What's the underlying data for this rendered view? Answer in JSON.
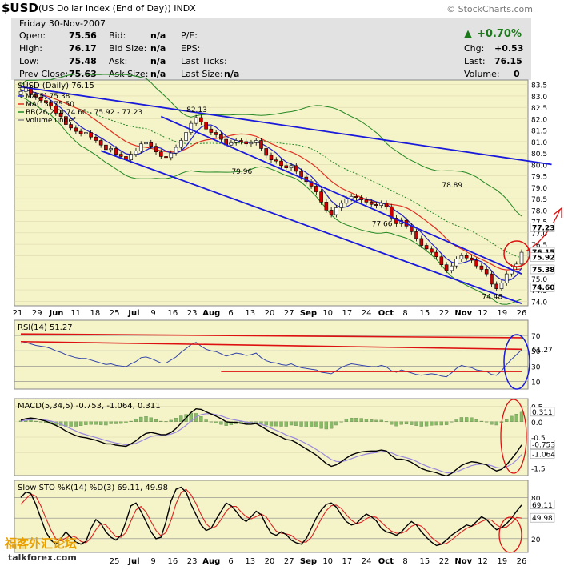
{
  "header": {
    "ticker": "$USD",
    "name": "(US Dollar Index (End of Day))",
    "exchange": "INDX",
    "brand": "© StockCharts.com"
  },
  "info": {
    "date": "Friday  30-Nov-2007",
    "open_label": "Open:",
    "open": "75.56",
    "high_label": "High:",
    "high": "76.17",
    "low_label": "Low:",
    "low": "75.48",
    "prev_label": "Prev Close:",
    "prev": "75.63",
    "bid_label": "Bid:",
    "bid": "n/a",
    "bidsize_label": "Bid Size:",
    "bidsize": "n/a",
    "ask_label": "Ask:",
    "ask": "n/a",
    "asksize_label": "Ask Size:",
    "asksize": "n/a",
    "pe_label": "P/E:",
    "eps_label": "EPS:",
    "lastticks_label": "Last Ticks:",
    "lastsize_label": "Last Size:",
    "lastsize": "n/a",
    "pct": "+0.70%",
    "chg_label": "Chg:",
    "chg": "+0.53",
    "last_label": "Last:",
    "last": "76.15",
    "vol_label": "Volume:",
    "vol": "0"
  },
  "colors": {
    "panel_bg": "#f5f3c8",
    "up": "#ffffff",
    "down": "#d00000",
    "trend": "#1a1adb",
    "ma5": "#2222cc",
    "ma13": "#e03020",
    "bb": "#228822",
    "annot": "#dd1111"
  },
  "chart_data": [
    {
      "type": "line",
      "title": "$USD (Daily) 76.15",
      "legend": [
        "MA(5) 75.38",
        "MA(13) 75.50",
        "BB(26,2.0) 74.60 - 75.92 - 77.23",
        "Volume undef"
      ],
      "y_ticks": [
        "83.5",
        "83.0",
        "82.5",
        "82.0",
        "81.5",
        "81.0",
        "80.5",
        "80.0",
        "79.5",
        "79.0",
        "78.5",
        "78.0",
        "77.5",
        "77.0",
        "76.5",
        "76.0",
        "75.5",
        "75.0",
        "74.5",
        "74.0"
      ],
      "ylim": [
        73.8,
        83.7
      ],
      "x_ticks": [
        "21",
        "29",
        "Jun",
        "11",
        "18",
        "25",
        "Jul",
        "9",
        "16",
        "23",
        "Aug",
        "6",
        "13",
        "20",
        "27",
        "Sep",
        "10",
        "17",
        "24",
        "Oct",
        "8",
        "15",
        "22",
        "Nov",
        "12",
        "19",
        "26"
      ],
      "annotations": [
        "82.13",
        "79.96",
        "78.89",
        "77.66",
        "74.48"
      ],
      "price_labels": [
        "77.23",
        "76.15",
        "75.92",
        "75.38",
        "75.50",
        "74.60"
      ],
      "close": [
        83.2,
        83.35,
        83.05,
        82.95,
        82.8,
        82.7,
        82.55,
        82.25,
        82.1,
        81.75,
        81.6,
        81.45,
        81.35,
        81.4,
        81.2,
        81.05,
        80.85,
        80.65,
        80.7,
        80.45,
        80.35,
        80.2,
        80.45,
        80.6,
        80.9,
        80.95,
        80.8,
        80.55,
        80.35,
        80.3,
        80.5,
        80.75,
        81.05,
        81.4,
        81.8,
        82.05,
        81.85,
        81.55,
        81.4,
        81.3,
        81.1,
        80.85,
        80.95,
        81.05,
        81.0,
        80.9,
        80.95,
        81.05,
        80.7,
        80.4,
        80.2,
        80.15,
        79.95,
        79.85,
        79.95,
        79.7,
        79.45,
        79.25,
        79.05,
        78.8,
        78.35,
        78.0,
        77.8,
        78.1,
        78.3,
        78.5,
        78.6,
        78.55,
        78.45,
        78.35,
        78.25,
        78.2,
        78.3,
        78.15,
        77.65,
        77.4,
        77.55,
        77.3,
        77.05,
        76.75,
        76.45,
        76.3,
        76.15,
        75.95,
        75.6,
        75.35,
        75.55,
        75.85,
        76.0,
        75.9,
        75.8,
        75.55,
        75.4,
        75.2,
        74.75,
        74.55,
        74.8,
        75.2,
        75.5,
        75.63,
        76.15
      ]
    },
    {
      "type": "line",
      "title": "RSI(14) 51.27",
      "ylim": [
        0,
        90
      ],
      "y_ticks": [
        "70",
        "50",
        "30",
        "10"
      ],
      "last_label": "51.27",
      "values": [
        60,
        61,
        59,
        57,
        56,
        55,
        53,
        50,
        48,
        45,
        43,
        41,
        40,
        40,
        38,
        36,
        34,
        32,
        33,
        31,
        30,
        29,
        33,
        36,
        41,
        42,
        40,
        37,
        34,
        34,
        38,
        42,
        48,
        53,
        58,
        61,
        56,
        52,
        50,
        49,
        46,
        43,
        45,
        47,
        46,
        44,
        45,
        47,
        41,
        37,
        35,
        34,
        32,
        31,
        33,
        30,
        28,
        27,
        26,
        25,
        22,
        21,
        20,
        24,
        28,
        31,
        33,
        32,
        31,
        30,
        29,
        29,
        31,
        29,
        24,
        22,
        25,
        23,
        21,
        19,
        18,
        19,
        20,
        19,
        17,
        16,
        21,
        27,
        31,
        29,
        28,
        25,
        24,
        23,
        19,
        18,
        24,
        32,
        39,
        45,
        51.27
      ]
    },
    {
      "type": "line",
      "title": "MACD(5,34,5) -0.753, -1.064, 0.311",
      "ylim": [
        -1.75,
        0.75
      ],
      "y_ticks": [
        "0.5",
        "0.0",
        "-0.5",
        "-1.0",
        "-1.5"
      ],
      "last_labels": [
        "0.311",
        "-0.753",
        "-1.064"
      ],
      "macd": [
        0.05,
        0.1,
        0.12,
        0.1,
        0.06,
        0.02,
        -0.05,
        -0.12,
        -0.2,
        -0.3,
        -0.38,
        -0.45,
        -0.5,
        -0.52,
        -0.56,
        -0.6,
        -0.66,
        -0.72,
        -0.72,
        -0.76,
        -0.78,
        -0.8,
        -0.72,
        -0.62,
        -0.48,
        -0.38,
        -0.35,
        -0.38,
        -0.42,
        -0.42,
        -0.35,
        -0.22,
        -0.05,
        0.12,
        0.3,
        0.42,
        0.4,
        0.32,
        0.25,
        0.18,
        0.1,
        0.0,
        -0.02,
        -0.02,
        -0.05,
        -0.08,
        -0.08,
        -0.06,
        -0.15,
        -0.25,
        -0.35,
        -0.42,
        -0.5,
        -0.58,
        -0.6,
        -0.68,
        -0.78,
        -0.88,
        -0.98,
        -1.08,
        -1.22,
        -1.36,
        -1.45,
        -1.4,
        -1.3,
        -1.18,
        -1.08,
        -1.02,
        -0.98,
        -0.96,
        -0.95,
        -0.95,
        -0.92,
        -0.95,
        -1.1,
        -1.22,
        -1.22,
        -1.25,
        -1.32,
        -1.42,
        -1.52,
        -1.58,
        -1.62,
        -1.66,
        -1.72,
        -1.76,
        -1.68,
        -1.55,
        -1.42,
        -1.35,
        -1.3,
        -1.32,
        -1.36,
        -1.4,
        -1.52,
        -1.6,
        -1.55,
        -1.4,
        -1.2,
        -1.0,
        -0.753
      ],
      "signal": [
        0.02,
        0.05,
        0.07,
        0.08,
        0.07,
        0.05,
        0.02,
        -0.02,
        -0.08,
        -0.15,
        -0.23,
        -0.3,
        -0.37,
        -0.42,
        -0.47,
        -0.51,
        -0.56,
        -0.61,
        -0.65,
        -0.69,
        -0.72,
        -0.75,
        -0.74,
        -0.7,
        -0.63,
        -0.55,
        -0.48,
        -0.45,
        -0.44,
        -0.43,
        -0.4,
        -0.34,
        -0.24,
        -0.12,
        0.02,
        0.15,
        0.23,
        0.26,
        0.26,
        0.23,
        0.19,
        0.13,
        0.08,
        0.05,
        0.02,
        -0.01,
        -0.03,
        -0.04,
        -0.08,
        -0.14,
        -0.21,
        -0.28,
        -0.35,
        -0.43,
        -0.49,
        -0.55,
        -0.63,
        -0.71,
        -0.8,
        -0.9,
        -1.0,
        -1.12,
        -1.23,
        -1.29,
        -1.3,
        -1.26,
        -1.2,
        -1.14,
        -1.09,
        -1.05,
        -1.02,
        -1.0,
        -0.97,
        -0.96,
        -1.01,
        -1.08,
        -1.13,
        -1.17,
        -1.22,
        -1.29,
        -1.37,
        -1.44,
        -1.5,
        -1.55,
        -1.61,
        -1.66,
        -1.67,
        -1.63,
        -1.56,
        -1.49,
        -1.43,
        -1.39,
        -1.38,
        -1.39,
        -1.43,
        -1.49,
        -1.51,
        -1.47,
        -1.38,
        -1.25,
        -1.064
      ]
    },
    {
      "type": "line",
      "title": "Slow STO %K(14) %D(3) 69.11, 49.98",
      "ylim": [
        0,
        105
      ],
      "y_ticks": [
        "80",
        "50",
        "20"
      ],
      "last_labels": [
        "69.11",
        "49.98"
      ],
      "k": [
        80,
        88,
        86,
        70,
        50,
        30,
        18,
        12,
        20,
        30,
        22,
        15,
        12,
        16,
        35,
        48,
        42,
        30,
        22,
        18,
        25,
        45,
        68,
        72,
        60,
        45,
        30,
        20,
        22,
        45,
        75,
        92,
        95,
        88,
        70,
        55,
        40,
        32,
        35,
        48,
        60,
        72,
        68,
        60,
        50,
        45,
        52,
        60,
        55,
        40,
        28,
        25,
        30,
        26,
        18,
        14,
        12,
        20,
        35,
        50,
        62,
        70,
        72,
        66,
        55,
        45,
        40,
        42,
        50,
        56,
        52,
        46,
        35,
        30,
        28,
        25,
        30,
        38,
        45,
        40,
        30,
        22,
        15,
        10,
        12,
        18,
        25,
        30,
        35,
        40,
        38,
        45,
        52,
        48,
        40,
        33,
        36,
        42,
        50,
        60,
        69.11
      ],
      "d": [
        70,
        78,
        85,
        82,
        68,
        50,
        33,
        20,
        17,
        21,
        24,
        22,
        16,
        14,
        21,
        33,
        42,
        40,
        31,
        23,
        22,
        29,
        46,
        62,
        67,
        59,
        45,
        32,
        24,
        29,
        47,
        71,
        87,
        92,
        84,
        71,
        55,
        42,
        35,
        38,
        48,
        60,
        67,
        67,
        59,
        52,
        49,
        52,
        56,
        52,
        41,
        31,
        28,
        27,
        25,
        19,
        15,
        15,
        22,
        35,
        49,
        61,
        68,
        69,
        64,
        55,
        47,
        42,
        44,
        49,
        53,
        51,
        44,
        37,
        31,
        28,
        28,
        31,
        38,
        41,
        38,
        31,
        22,
        16,
        12,
        13,
        18,
        24,
        30,
        35,
        38,
        41,
        45,
        48,
        47,
        40,
        36,
        37,
        43,
        51,
        49.98
      ]
    }
  ]
}
